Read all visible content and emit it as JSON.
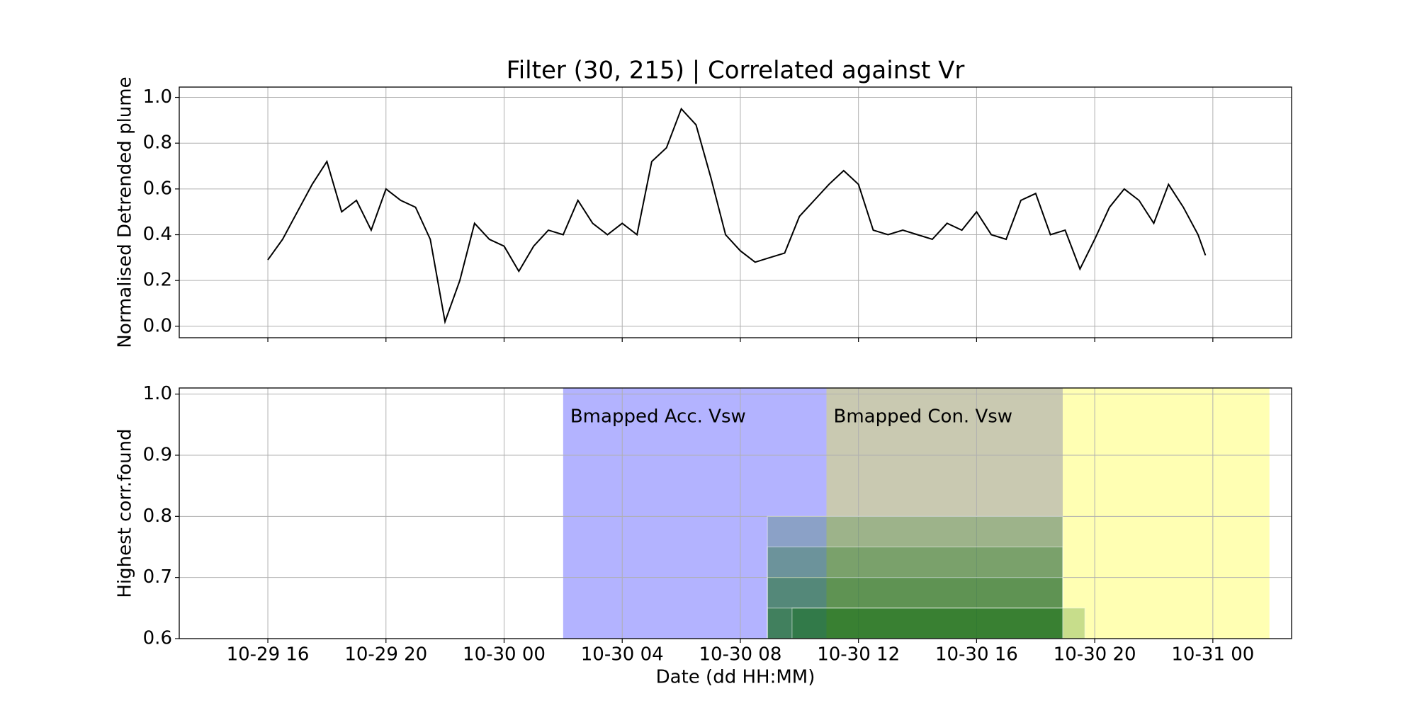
{
  "chart_data": [
    {
      "type": "line",
      "title": "Filter (30, 215) | Correlated against Vr",
      "ylabel": "Normalised Detrended plume",
      "color": "#000000",
      "x": [
        "10-29 16:00",
        "10-29 16:30",
        "10-29 17:00",
        "10-29 17:30",
        "10-29 18:00",
        "10-29 18:30",
        "10-29 19:00",
        "10-29 19:30",
        "10-29 20:00",
        "10-29 20:30",
        "10-29 21:00",
        "10-29 21:30",
        "10-29 22:00",
        "10-29 22:30",
        "10-29 23:00",
        "10-29 23:30",
        "10-30 00:00",
        "10-30 00:30",
        "10-30 01:00",
        "10-30 01:30",
        "10-30 02:00",
        "10-30 02:30",
        "10-30 03:00",
        "10-30 03:30",
        "10-30 04:00",
        "10-30 04:30",
        "10-30 05:00",
        "10-30 05:30",
        "10-30 06:00",
        "10-30 06:30",
        "10-30 07:00",
        "10-30 07:30",
        "10-30 08:00",
        "10-30 08:30",
        "10-30 09:00",
        "10-30 09:30",
        "10-30 10:00",
        "10-30 10:30",
        "10-30 11:00",
        "10-30 11:30",
        "10-30 12:00",
        "10-30 12:30",
        "10-30 13:00",
        "10-30 13:30",
        "10-30 14:00",
        "10-30 14:30",
        "10-30 15:00",
        "10-30 15:30",
        "10-30 16:00",
        "10-30 16:30",
        "10-30 17:00",
        "10-30 17:30",
        "10-30 18:00",
        "10-30 18:30",
        "10-30 19:00",
        "10-30 19:30",
        "10-30 20:00",
        "10-30 20:30",
        "10-30 21:00",
        "10-30 21:30",
        "10-30 22:00",
        "10-30 22:30",
        "10-30 23:00",
        "10-30 23:30",
        "10-30 23:45"
      ],
      "values": [
        0.29,
        0.38,
        0.5,
        0.62,
        0.72,
        0.5,
        0.55,
        0.42,
        0.6,
        0.55,
        0.52,
        0.38,
        0.02,
        0.2,
        0.45,
        0.38,
        0.35,
        0.24,
        0.35,
        0.42,
        0.4,
        0.55,
        0.45,
        0.4,
        0.45,
        0.4,
        0.72,
        0.78,
        0.95,
        0.88,
        0.65,
        0.4,
        0.33,
        0.28,
        0.3,
        0.32,
        0.48,
        0.55,
        0.62,
        0.68,
        0.62,
        0.42,
        0.4,
        0.42,
        0.4,
        0.38,
        0.45,
        0.42,
        0.5,
        0.4,
        0.38,
        0.55,
        0.58,
        0.4,
        0.42,
        0.25,
        0.38,
        0.52,
        0.6,
        0.55,
        0.45,
        0.62,
        0.52,
        0.4,
        0.31
      ],
      "xlim": [
        "10-29 13:00",
        "10-31 02:40"
      ],
      "xticks": [
        "10-29 16:00",
        "10-29 20:00",
        "10-30 00:00",
        "10-30 04:00",
        "10-30 08:00",
        "10-30 12:00",
        "10-30 16:00",
        "10-30 20:00",
        "10-31 00:00"
      ],
      "ylim": [
        -0.05,
        1.045
      ],
      "yticks": [
        {
          "value": 0,
          "label": "0.0"
        },
        0.2,
        0.4,
        0.6,
        0.8,
        {
          "value": 1,
          "label": "1.0"
        }
      ],
      "grid": true
    },
    {
      "type": "interval",
      "ylabel": "Highest corr.found",
      "xlabel": "Date (dd HH:MM)",
      "spans": [
        {
          "start": "10-30 02:00",
          "end": "10-30 10:55",
          "label": "Bmapped Acc. Vsw",
          "color": "#b3b3ff"
        },
        {
          "start": "10-30 10:55",
          "end": "10-30 18:55",
          "label": "Bmapped Con. Vsw",
          "color": "#c9c9b1"
        },
        {
          "start": "10-30 18:55",
          "end": "10-31 01:55",
          "color": "#ffffb3"
        }
      ],
      "bar_color": "#006400",
      "bars": [
        {
          "start": "10-30 08:55",
          "end": "10-30 18:55",
          "value": 0.8
        },
        {
          "start": "10-30 08:55",
          "end": "10-30 18:55",
          "value": 0.75
        },
        {
          "start": "10-30 08:55",
          "end": "10-30 18:55",
          "value": 0.7
        },
        {
          "start": "10-30 08:55",
          "end": "10-30 18:55",
          "value": 0.65
        },
        {
          "start": "10-30 09:45",
          "end": "10-30 19:40",
          "value": 0.65
        }
      ],
      "xlim": [
        "10-29 13:00",
        "10-31 02:40"
      ],
      "xticks": [
        {
          "value": "10-29 16:00",
          "label": "10-29 16"
        },
        {
          "value": "10-29 20:00",
          "label": "10-29 20"
        },
        {
          "value": "10-30 00:00",
          "label": "10-30 00"
        },
        {
          "value": "10-30 04:00",
          "label": "10-30 04"
        },
        {
          "value": "10-30 08:00",
          "label": "10-30 08"
        },
        {
          "value": "10-30 12:00",
          "label": "10-30 12"
        },
        {
          "value": "10-30 16:00",
          "label": "10-30 16"
        },
        {
          "value": "10-30 20:00",
          "label": "10-30 20"
        },
        {
          "value": "10-31 00:00",
          "label": "10-31 00"
        }
      ],
      "ylim": [
        0.6,
        1.01
      ],
      "yticks": [
        0.6,
        0.7,
        0.8,
        0.9,
        {
          "value": 1,
          "label": "1.0"
        }
      ],
      "grid": true
    }
  ]
}
